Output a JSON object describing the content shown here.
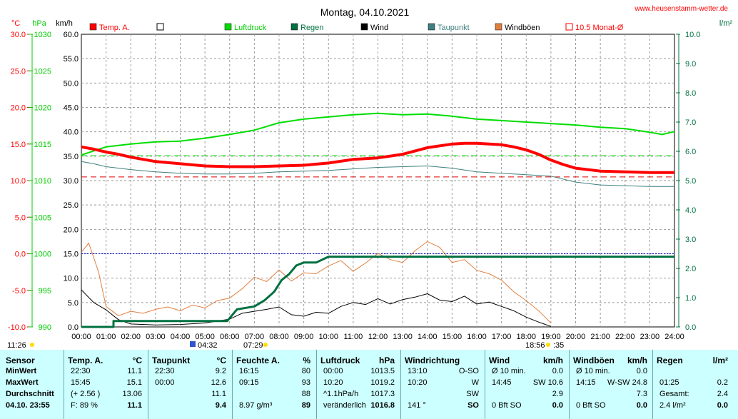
{
  "header": {
    "title": "Montag, 04.10.2021",
    "url": "www.heusenstamm-wetter.de"
  },
  "axes_labels": {
    "temp_unit": "°C",
    "pressure_unit": "hPa",
    "wind_unit": "km/h",
    "rain_unit": "l/m²"
  },
  "legend": [
    {
      "label": "Temp. A.",
      "color": "#ff0000",
      "label_color": "#ff0000",
      "hollow": false
    },
    {
      "label": "",
      "color": "#000000",
      "label_color": "#000000",
      "hollow": true
    },
    {
      "label": "Luftdruck",
      "color": "#00dd00",
      "label_color": "#00cc00",
      "hollow": false
    },
    {
      "label": "Regen",
      "color": "#007040",
      "label_color": "#007040",
      "hollow": false
    },
    {
      "label": "Wind",
      "color": "#000000",
      "label_color": "#000000",
      "hollow": false
    },
    {
      "label": "Taupunkt",
      "color": "#3f7f7f",
      "label_color": "#3f7f7f",
      "hollow": false
    },
    {
      "label": "Windböen",
      "color": "#e08040",
      "label_color": "#000000",
      "hollow": false
    },
    {
      "label": "10.5 Monat-Ø",
      "color": "#ff0000",
      "label_color": "#ff0000",
      "hollow": true
    }
  ],
  "time_labels": {
    "left_time": "11:26",
    "sunrise": "04:32",
    "sunrise2": "07:29",
    "sunset": "18:56",
    "sunset_min": ":35"
  },
  "colors": {
    "temp": "#ff0000",
    "pressure": "#00dd00",
    "rain": "#007040",
    "wind": "#000000",
    "dewpoint": "#3f7f7f",
    "gust": "#e08040",
    "month_avg": "#dd0000",
    "zero_line": "#0000cc",
    "grid": "#999999",
    "table_bg": "#ccffff"
  },
  "chart_data": {
    "type": "line",
    "x_ticks": [
      "00:00",
      "01:00",
      "02:00",
      "03:00",
      "04:00",
      "05:00",
      "06:00",
      "07:00",
      "08:00",
      "09:00",
      "10:00",
      "11:00",
      "12:00",
      "13:00",
      "14:00",
      "15:00",
      "16:00",
      "17:00",
      "18:00",
      "19:00",
      "20:00",
      "21:00",
      "22:00",
      "23:00",
      "24:00"
    ],
    "xlim": [
      0,
      24
    ],
    "wind_axis": {
      "ylim": [
        0,
        60
      ],
      "ticks": [
        "0.0",
        "5.0",
        "10.0",
        "15.0",
        "20.0",
        "25.0",
        "30.0",
        "35.0",
        "40.0",
        "45.0",
        "50.0",
        "55.0",
        "60.0"
      ]
    },
    "temp_axis": {
      "ylim": [
        -10,
        30
      ],
      "ticks": [
        "-10.0",
        "-5.0",
        "0.0",
        "5.0",
        "10.0",
        "15.0",
        "20.0",
        "25.0",
        "30.0"
      ]
    },
    "pressure_axis": {
      "ylim": [
        990,
        1030
      ],
      "ticks": [
        "990",
        "995",
        "1000",
        "1005",
        "1010",
        "1015",
        "1020",
        "1025",
        "1030"
      ]
    },
    "rain_axis": {
      "ylim": [
        0,
        10
      ],
      "ticks": [
        "0.0",
        "1.0",
        "2.0",
        "3.0",
        "4.0",
        "5.0",
        "6.0",
        "7.0",
        "8.0",
        "9.0",
        "10.0"
      ]
    },
    "month_avg_temp": 10.5,
    "pressure_avg_line": 1013.4,
    "series": [
      {
        "name": "Temp. A.",
        "axis": "temp",
        "x": [
          0,
          0.5,
          1,
          1.5,
          2,
          3,
          4,
          5,
          6,
          7,
          8,
          9,
          10,
          11,
          12,
          13,
          14,
          15,
          15.5,
          16,
          17,
          17.5,
          18,
          18.5,
          19,
          19.5,
          20,
          21,
          22,
          23,
          24
        ],
        "y": [
          14.6,
          14.3,
          13.9,
          13.6,
          13.2,
          12.6,
          12.3,
          12.0,
          11.9,
          11.9,
          12.0,
          12.1,
          12.4,
          12.9,
          13.1,
          13.6,
          14.5,
          15.0,
          15.1,
          15.1,
          14.9,
          14.6,
          14.2,
          13.6,
          12.8,
          12.2,
          11.7,
          11.3,
          11.2,
          11.1,
          11.1
        ]
      },
      {
        "name": "Luftdruck",
        "axis": "pressure",
        "x": [
          0,
          1,
          2,
          3,
          4,
          5,
          6,
          7,
          8,
          9,
          10,
          11,
          12,
          13,
          14,
          15,
          16,
          17,
          18,
          19,
          20,
          21,
          22,
          23,
          23.5,
          24
        ],
        "y": [
          1013.5,
          1014.6,
          1015.0,
          1015.3,
          1015.4,
          1015.8,
          1016.3,
          1016.9,
          1017.9,
          1018.4,
          1018.7,
          1019.0,
          1019.2,
          1019.0,
          1019.1,
          1018.8,
          1018.4,
          1018.2,
          1018.0,
          1017.8,
          1017.6,
          1017.3,
          1017.1,
          1016.6,
          1016.3,
          1016.7
        ]
      },
      {
        "name": "Taupunkt",
        "axis": "temp",
        "x": [
          0,
          0.5,
          1,
          2,
          3,
          4,
          5,
          6,
          7,
          8,
          9,
          10,
          11,
          12,
          13,
          14,
          15,
          16,
          17,
          18,
          19,
          20,
          21,
          22,
          23,
          24
        ],
        "y": [
          12.6,
          12.3,
          11.9,
          11.5,
          11.2,
          11.0,
          10.9,
          10.9,
          11.0,
          11.2,
          11.3,
          11.4,
          11.6,
          11.8,
          11.9,
          12.0,
          11.7,
          11.2,
          11.0,
          10.8,
          10.6,
          9.8,
          9.4,
          9.3,
          9.2,
          9.2
        ]
      },
      {
        "name": "Regen",
        "axis": "rain",
        "x": [
          0,
          1.3,
          1.3,
          2,
          3,
          4,
          5,
          5.9,
          6.3,
          7,
          7.4,
          7.8,
          8.1,
          8.4,
          8.7,
          9,
          9.5,
          10,
          10.5,
          11,
          12,
          13,
          14,
          15,
          16,
          17,
          18,
          19,
          20,
          21,
          22,
          23,
          24
        ],
        "y": [
          0,
          0,
          0.2,
          0.2,
          0.2,
          0.2,
          0.2,
          0.2,
          0.6,
          0.7,
          0.9,
          1.2,
          1.6,
          1.8,
          2.1,
          2.2,
          2.2,
          2.4,
          2.4,
          2.4,
          2.4,
          2.4,
          2.4,
          2.4,
          2.4,
          2.4,
          2.4,
          2.4,
          2.4,
          2.4,
          2.4,
          2.4,
          2.4
        ]
      },
      {
        "name": "Wind",
        "axis": "wind",
        "x": [
          0,
          0.5,
          1,
          1.5,
          2,
          3,
          4,
          5,
          6,
          6.5,
          7,
          7.5,
          8,
          8.5,
          9,
          9.5,
          10,
          10.5,
          11,
          11.5,
          12,
          12.5,
          13,
          13.5,
          14,
          14.5,
          15,
          15.5,
          16,
          16.5,
          17,
          17.5,
          18,
          18.5,
          19
        ],
        "y": [
          7.6,
          5.0,
          3.5,
          1.5,
          0.6,
          0.4,
          0.5,
          0.8,
          1.6,
          2.8,
          3.2,
          3.6,
          4.1,
          2.5,
          2.2,
          3.0,
          2.8,
          4.2,
          5.0,
          4.6,
          5.8,
          4.7,
          5.6,
          6.1,
          6.8,
          5.5,
          5.2,
          6.3,
          4.7,
          5.1,
          4.2,
          3.3,
          2.0,
          1.0,
          0.1
        ]
      },
      {
        "name": "Windböen",
        "axis": "wind",
        "x": [
          0,
          0.3,
          0.7,
          1,
          1.5,
          2,
          2.5,
          3,
          3.5,
          4,
          4.5,
          5,
          5.5,
          6,
          6.5,
          7,
          7.5,
          8,
          8.5,
          9,
          9.5,
          10,
          10.5,
          11,
          11.5,
          12,
          12.5,
          13,
          13.5,
          14,
          14.5,
          15,
          15.5,
          16,
          16.5,
          17,
          17.5,
          18,
          18.5,
          19
        ],
        "y": [
          15.3,
          17.2,
          11.2,
          4.2,
          2.3,
          3.2,
          2.8,
          3.6,
          4.1,
          3.3,
          4.5,
          3.9,
          5.4,
          5.9,
          7.8,
          10.2,
          9.3,
          11.7,
          9.4,
          11.1,
          10.9,
          12.5,
          13.6,
          11.4,
          13.1,
          15.1,
          13.8,
          13.2,
          15.6,
          17.5,
          16.3,
          13.2,
          13.8,
          11.6,
          10.9,
          9.6,
          7.2,
          5.4,
          3.3,
          0.8
        ]
      }
    ]
  },
  "table": {
    "columns": [
      {
        "header": "Sensor",
        "unit": ""
      },
      {
        "header": "Temp. A.",
        "unit": "°C"
      },
      {
        "header": "Taupunkt",
        "unit": "°C"
      },
      {
        "header": "Feuchte A.",
        "unit": "%"
      },
      {
        "header": "Luftdruck",
        "unit": "hPa"
      },
      {
        "header": "Windrichtung",
        "unit": ""
      },
      {
        "header": "Wind",
        "unit": "km/h"
      },
      {
        "header": "Windböen",
        "unit": "km/h"
      },
      {
        "header": "Regen",
        "unit": "l/m²"
      }
    ],
    "rows": [
      {
        "label": "MinWert",
        "cells": [
          [
            "22:30",
            "11.1"
          ],
          [
            "22:30",
            "9.2"
          ],
          [
            "16:15",
            "80"
          ],
          [
            "00:00",
            "1013.5"
          ],
          [
            "13:10",
            "O-SO"
          ],
          [
            "Ø 10 min.",
            "0.0"
          ],
          [
            "Ø 10 min.",
            "0.0"
          ],
          [
            "",
            ""
          ]
        ]
      },
      {
        "label": "MaxWert",
        "cells": [
          [
            "15:45",
            "15.1"
          ],
          [
            "00:00",
            "12.6"
          ],
          [
            "09:15",
            "93"
          ],
          [
            "10:20",
            "1019.2"
          ],
          [
            "10:20",
            "W"
          ],
          [
            "14:45",
            "SW 10.6"
          ],
          [
            "14:15",
            "W-SW 24.8"
          ],
          [
            "01:25",
            "0.2"
          ]
        ]
      },
      {
        "label": "Durchschnitt",
        "cells": [
          [
            "(+ 2.56 )",
            "13.06"
          ],
          [
            "",
            "11.1"
          ],
          [
            "",
            "88"
          ],
          [
            "^1.1hPa/h",
            "1017.3"
          ],
          [
            "",
            "SW"
          ],
          [
            "",
            "2.9"
          ],
          [
            "",
            "7.3"
          ],
          [
            "Gesamt:",
            "2.4"
          ]
        ]
      },
      {
        "label": "04.10. 23:55",
        "cells": [
          [
            "F: 89 %",
            "11.1"
          ],
          [
            "",
            "9.4"
          ],
          [
            "8.97 g/m³",
            "89"
          ],
          [
            "veränderlich",
            "1016.8"
          ],
          [
            "141 °",
            "SO"
          ],
          [
            "0 Bft SO",
            "0.0"
          ],
          [
            "0 Bft SO",
            "0.0"
          ],
          [
            "2.4 l/m²",
            "0.0"
          ]
        ]
      }
    ]
  }
}
